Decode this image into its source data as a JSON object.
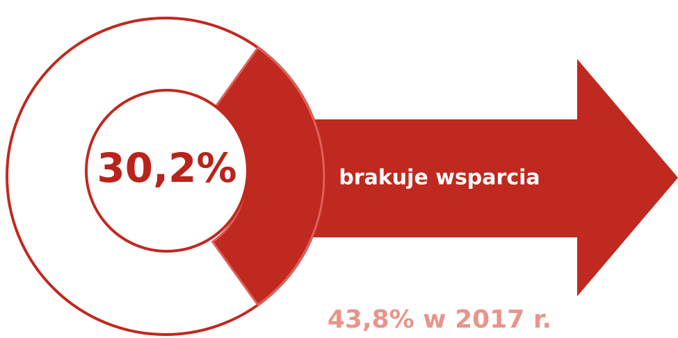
{
  "chart_data": {
    "type": "pie",
    "values": [
      30.2
    ],
    "value_labels": [
      "30,2%"
    ],
    "color": "#c0291f",
    "annotations": [
      "brakuje wsparcia",
      "43,8% w 2017 r."
    ]
  }
}
